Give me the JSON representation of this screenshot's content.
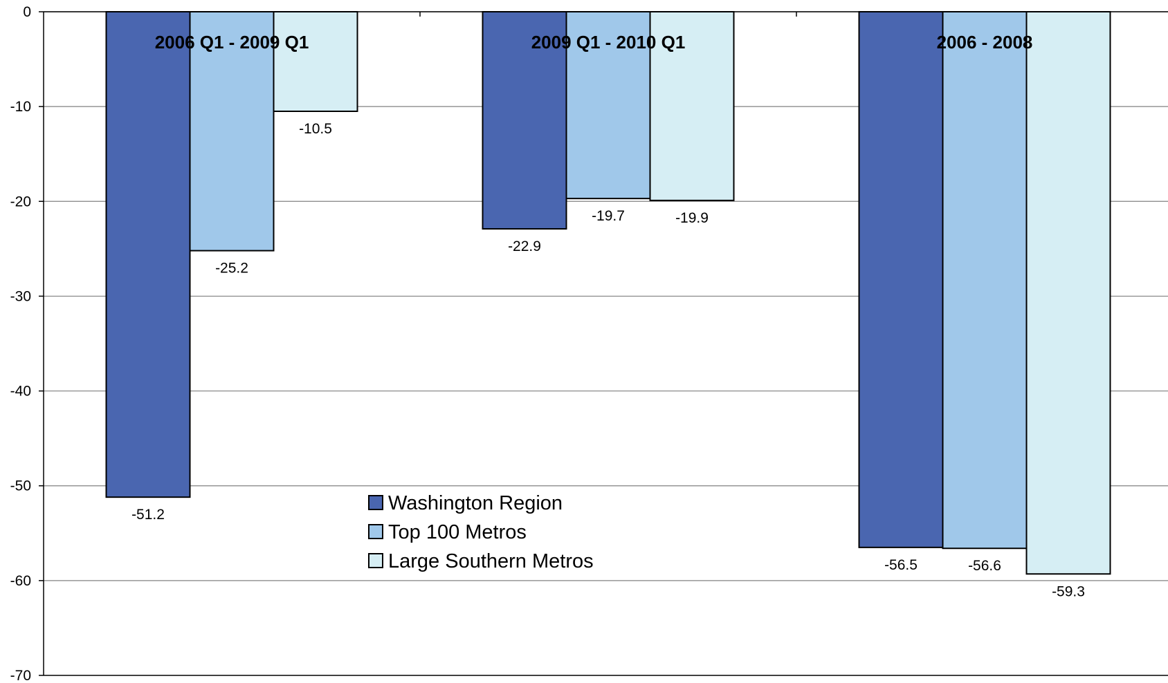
{
  "chart_data": {
    "type": "bar",
    "categories": [
      "2006 Q1 - 2009 Q1",
      "2009 Q1 - 2010 Q1",
      "2006 - 2008"
    ],
    "series": [
      {
        "name": "Washington Region",
        "values": [
          -51.2,
          -22.9,
          -56.5
        ],
        "color": "#4a66b0"
      },
      {
        "name": "Top 100 Metros",
        "values": [
          -25.2,
          -19.7,
          -56.6
        ],
        "color": "#a0c8ea"
      },
      {
        "name": "Large Southern Metros",
        "values": [
          -10.5,
          -19.9,
          -59.3
        ],
        "color": "#d6eef4"
      }
    ],
    "data_labels": [
      [
        "-51.2",
        "-22.9",
        "-56.5"
      ],
      [
        "-25.2",
        "-19.7",
        "-56.6"
      ],
      [
        "-10.5",
        "-19.9",
        "-59.3"
      ]
    ],
    "y_ticks": [
      0,
      -10,
      -20,
      -30,
      -40,
      -50,
      -60,
      -70
    ],
    "y_tick_labels": [
      "0",
      "-10",
      "-20",
      "-30",
      "-40",
      "-50",
      "-60",
      "-70"
    ],
    "ylim": [
      -70,
      0
    ],
    "title": "",
    "xlabel": "",
    "ylabel": "",
    "grid": true,
    "legend_position": "bottom-center",
    "category_label_position": "top-inside"
  }
}
